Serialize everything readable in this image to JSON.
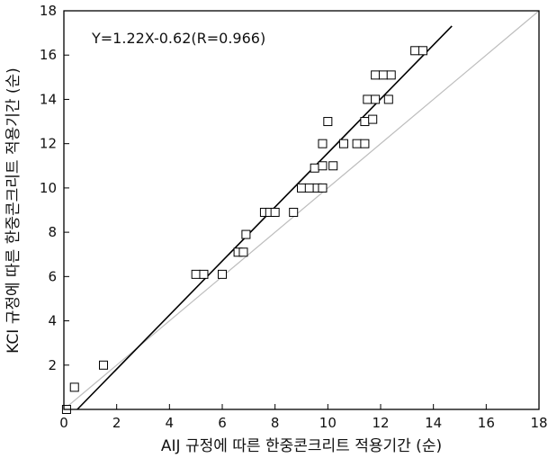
{
  "chart_data": {
    "type": "scatter",
    "title": "",
    "xlabel": "AIJ 규정에 따른 한중콘크리트 적용기간 (순)",
    "ylabel": "KCI 규정에 따른 한중콘크리트 적용기간 (순)",
    "xlim": [
      0,
      18
    ],
    "ylim": [
      0,
      18
    ],
    "xticks": [
      0,
      2,
      4,
      6,
      8,
      10,
      12,
      14,
      16,
      18
    ],
    "yticks": [
      2,
      4,
      6,
      8,
      10,
      12,
      14,
      16,
      18
    ],
    "annotation": "Y=1.22X-0.62(R=0.966)",
    "grid": false,
    "marker": "open-square",
    "regression": {
      "slope": 1.22,
      "intercept": -0.62,
      "x_range": [
        0.5,
        14.7
      ],
      "color": "#000000"
    },
    "reference_line": {
      "slope": 1,
      "intercept": 0,
      "x_range": [
        0,
        18
      ],
      "color": "#bdbdbd"
    },
    "points": [
      {
        "x": 0.1,
        "y": 0.0
      },
      {
        "x": 0.4,
        "y": 1.0
      },
      {
        "x": 1.5,
        "y": 2.0
      },
      {
        "x": 5.0,
        "y": 6.1
      },
      {
        "x": 5.3,
        "y": 6.1
      },
      {
        "x": 6.0,
        "y": 6.1
      },
      {
        "x": 6.6,
        "y": 7.1
      },
      {
        "x": 6.8,
        "y": 7.1
      },
      {
        "x": 6.9,
        "y": 7.9
      },
      {
        "x": 7.6,
        "y": 8.9
      },
      {
        "x": 7.8,
        "y": 8.9
      },
      {
        "x": 8.0,
        "y": 8.9
      },
      {
        "x": 8.7,
        "y": 8.9
      },
      {
        "x": 9.0,
        "y": 10.0
      },
      {
        "x": 9.3,
        "y": 10.0
      },
      {
        "x": 9.6,
        "y": 10.0
      },
      {
        "x": 9.8,
        "y": 10.0
      },
      {
        "x": 9.5,
        "y": 10.9
      },
      {
        "x": 9.8,
        "y": 11.0
      },
      {
        "x": 10.2,
        "y": 11.0
      },
      {
        "x": 9.8,
        "y": 12.0
      },
      {
        "x": 10.6,
        "y": 12.0
      },
      {
        "x": 11.1,
        "y": 12.0
      },
      {
        "x": 11.4,
        "y": 12.0
      },
      {
        "x": 10.0,
        "y": 13.0
      },
      {
        "x": 11.4,
        "y": 13.0
      },
      {
        "x": 11.7,
        "y": 13.1
      },
      {
        "x": 11.5,
        "y": 14.0
      },
      {
        "x": 11.8,
        "y": 14.0
      },
      {
        "x": 12.3,
        "y": 14.0
      },
      {
        "x": 11.8,
        "y": 15.1
      },
      {
        "x": 12.1,
        "y": 15.1
      },
      {
        "x": 12.4,
        "y": 15.1
      },
      {
        "x": 13.3,
        "y": 16.2
      },
      {
        "x": 13.6,
        "y": 16.2
      }
    ]
  }
}
